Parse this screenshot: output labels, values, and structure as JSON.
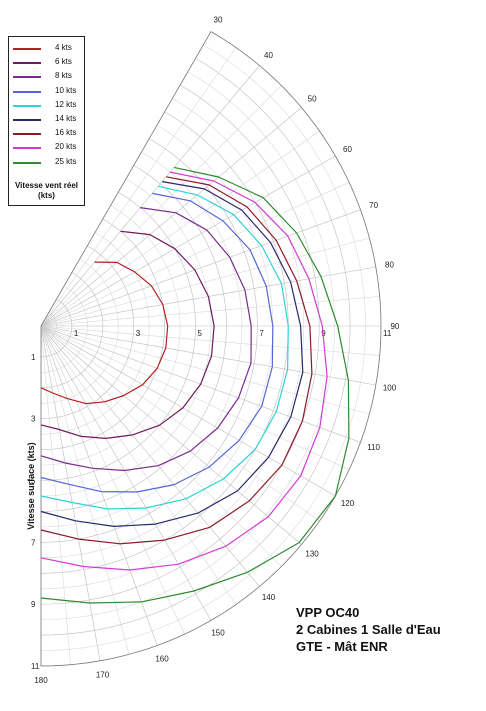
{
  "chart_data": {
    "type": "polar",
    "radial_axis": {
      "label": "Vitesse surface (kts)",
      "ticks": [
        1,
        3,
        5,
        7,
        9,
        11
      ],
      "max": 11
    },
    "angle_axis": {
      "ticks": [
        30,
        40,
        50,
        60,
        70,
        80,
        90,
        100,
        110,
        120,
        130,
        140,
        150,
        160,
        170,
        180
      ]
    },
    "legend_title": "Vitesse vent réel (kts)",
    "series": [
      {
        "name": "4 kts",
        "color": "#b22222",
        "angles": [
          40,
          50,
          60,
          70,
          80,
          90,
          100,
          110,
          120,
          130,
          140,
          150,
          160,
          170,
          180
        ],
        "speeds": [
          2.7,
          3.2,
          3.5,
          3.8,
          4.0,
          4.1,
          4.1,
          4.0,
          3.8,
          3.5,
          3.2,
          2.9,
          2.5,
          2.2,
          2.0
        ]
      },
      {
        "name": "6 kts",
        "color": "#6e1a5c",
        "angles": [
          40,
          50,
          60,
          70,
          80,
          90,
          100,
          110,
          120,
          130,
          140,
          150,
          160,
          170,
          180
        ],
        "speeds": [
          4.0,
          4.6,
          5.0,
          5.3,
          5.5,
          5.6,
          5.6,
          5.5,
          5.3,
          5.0,
          4.6,
          4.2,
          3.8,
          3.4,
          3.2
        ]
      },
      {
        "name": "8 kts",
        "color": "#7a2c8e",
        "angles": [
          40,
          50,
          60,
          70,
          80,
          90,
          100,
          110,
          120,
          130,
          140,
          150,
          160,
          170,
          180
        ],
        "speeds": [
          5.0,
          5.7,
          6.2,
          6.5,
          6.7,
          6.8,
          6.9,
          6.8,
          6.6,
          6.3,
          5.9,
          5.4,
          4.9,
          4.5,
          4.2
        ]
      },
      {
        "name": "10 kts",
        "color": "#5566d6",
        "angles": [
          40,
          50,
          60,
          70,
          80,
          90,
          100,
          110,
          120,
          130,
          140,
          150,
          160,
          170,
          180
        ],
        "speeds": [
          5.6,
          6.3,
          6.8,
          7.2,
          7.4,
          7.5,
          7.6,
          7.6,
          7.4,
          7.1,
          6.7,
          6.2,
          5.7,
          5.2,
          4.9
        ]
      },
      {
        "name": "12 kts",
        "color": "#2ed3d3",
        "angles": [
          40,
          50,
          60,
          70,
          80,
          90,
          100,
          110,
          120,
          130,
          140,
          150,
          160,
          170,
          180
        ],
        "speeds": [
          5.9,
          6.6,
          7.2,
          7.6,
          7.9,
          8.0,
          8.1,
          8.1,
          8.0,
          7.7,
          7.3,
          6.8,
          6.3,
          5.8,
          5.5
        ]
      },
      {
        "name": "14 kts",
        "color": "#27276e",
        "angles": [
          40,
          50,
          60,
          70,
          80,
          90,
          100,
          110,
          120,
          130,
          140,
          150,
          160,
          170,
          180
        ],
        "speeds": [
          6.1,
          6.9,
          7.5,
          7.9,
          8.2,
          8.4,
          8.6,
          8.6,
          8.5,
          8.3,
          7.9,
          7.4,
          6.9,
          6.4,
          6.0
        ]
      },
      {
        "name": "16 kts",
        "color": "#8a1a2a",
        "angles": [
          40,
          50,
          60,
          70,
          80,
          90,
          100,
          110,
          120,
          130,
          140,
          150,
          160,
          170,
          180
        ],
        "speeds": [
          6.3,
          7.1,
          7.7,
          8.1,
          8.4,
          8.7,
          8.9,
          9.0,
          9.0,
          8.8,
          8.5,
          8.0,
          7.5,
          7.0,
          6.6
        ]
      },
      {
        "name": "20 kts",
        "color": "#d43bd4",
        "angles": [
          40,
          50,
          60,
          70,
          80,
          90,
          100,
          110,
          120,
          130,
          140,
          150,
          160,
          170,
          180
        ],
        "speeds": [
          6.5,
          7.3,
          8.0,
          8.5,
          8.8,
          9.1,
          9.4,
          9.6,
          9.7,
          9.6,
          9.3,
          8.9,
          8.4,
          7.9,
          7.5
        ]
      },
      {
        "name": "25 kts",
        "color": "#2e8b2e",
        "angles": [
          40,
          50,
          60,
          70,
          80,
          90,
          100,
          110,
          120,
          130,
          140,
          150,
          160,
          170,
          180
        ],
        "speeds": [
          6.7,
          7.5,
          8.3,
          8.8,
          9.2,
          9.6,
          10.1,
          10.6,
          11.0,
          10.9,
          10.4,
          9.9,
          9.5,
          9.1,
          8.8
        ]
      }
    ]
  },
  "title_lines": [
    "VPP OC40",
    "2 Cabines 1 Salle d'Eau",
    "GTE - Mât ENR"
  ]
}
